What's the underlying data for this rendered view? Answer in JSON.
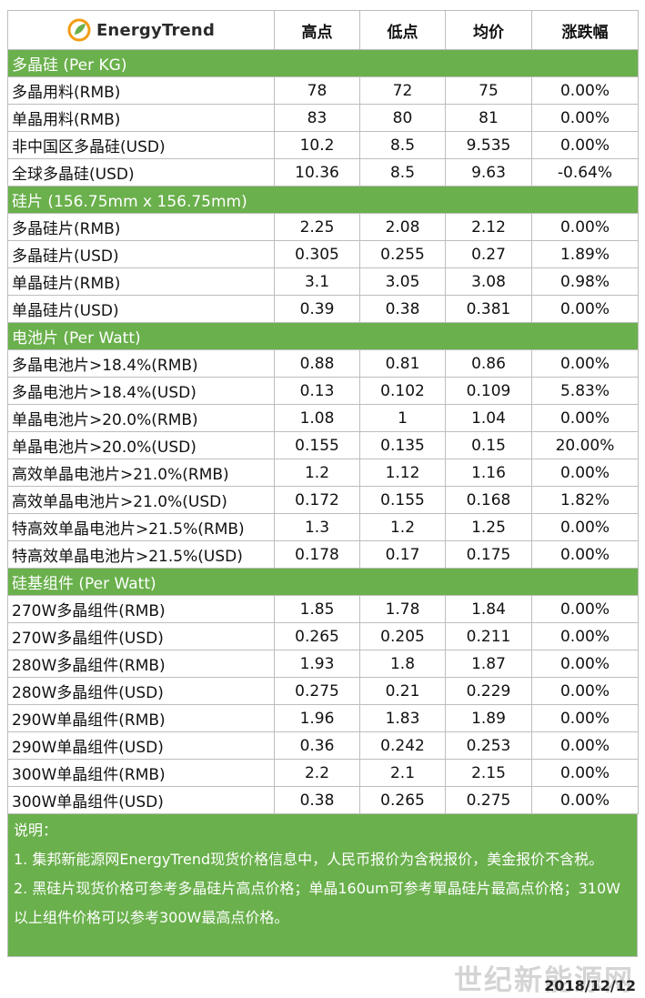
{
  "header": {
    "brand": "EnergyTrend",
    "cols": [
      "高点",
      "低点",
      "均价",
      "涨跌幅"
    ]
  },
  "sections": [
    {
      "title": "多晶硅 (Per KG)",
      "rows": [
        {
          "name": "多晶用料(RMB)",
          "high": "78",
          "low": "72",
          "avg": "75",
          "chg": "0.00%"
        },
        {
          "name": "单晶用料(RMB)",
          "high": "83",
          "low": "80",
          "avg": "81",
          "chg": "0.00%"
        },
        {
          "name": "非中国区多晶硅(USD)",
          "high": "10.2",
          "low": "8.5",
          "avg": "9.535",
          "chg": "0.00%"
        },
        {
          "name": "全球多晶硅(USD)",
          "high": "10.36",
          "low": "8.5",
          "avg": "9.63",
          "chg": "-0.64%"
        }
      ]
    },
    {
      "title": "硅片 (156.75mm x 156.75mm)",
      "rows": [
        {
          "name": "多晶硅片(RMB)",
          "high": "2.25",
          "low": "2.08",
          "avg": "2.12",
          "chg": "0.00%"
        },
        {
          "name": "多晶硅片(USD)",
          "high": "0.305",
          "low": "0.255",
          "avg": "0.27",
          "chg": "1.89%"
        },
        {
          "name": "单晶硅片(RMB)",
          "high": "3.1",
          "low": "3.05",
          "avg": "3.08",
          "chg": "0.98%"
        },
        {
          "name": "单晶硅片(USD)",
          "high": "0.39",
          "low": "0.38",
          "avg": "0.381",
          "chg": "0.00%"
        }
      ]
    },
    {
      "title": "电池片 (Per Watt)",
      "rows": [
        {
          "name": "多晶电池片>18.4%(RMB)",
          "high": "0.88",
          "low": "0.81",
          "avg": "0.86",
          "chg": "0.00%"
        },
        {
          "name": "多晶电池片>18.4%(USD)",
          "high": "0.13",
          "low": "0.102",
          "avg": "0.109",
          "chg": "5.83%"
        },
        {
          "name": "单晶电池片>20.0%(RMB)",
          "high": "1.08",
          "low": "1",
          "avg": "1.04",
          "chg": "0.00%"
        },
        {
          "name": "单晶电池片>20.0%(USD)",
          "high": "0.155",
          "low": "0.135",
          "avg": "0.15",
          "chg": "20.00%"
        },
        {
          "name": "高效单晶电池片>21.0%(RMB)",
          "high": "1.2",
          "low": "1.12",
          "avg": "1.16",
          "chg": "0.00%"
        },
        {
          "name": "高效单晶电池片>21.0%(USD)",
          "high": "0.172",
          "low": "0.155",
          "avg": "0.168",
          "chg": "1.82%"
        },
        {
          "name": "特高效单晶电池片>21.5%(RMB)",
          "high": "1.3",
          "low": "1.2",
          "avg": "1.25",
          "chg": "0.00%"
        },
        {
          "name": "特高效单晶电池片>21.5%(USD)",
          "high": "0.178",
          "low": "0.17",
          "avg": "0.175",
          "chg": "0.00%"
        }
      ]
    },
    {
      "title": "硅基组件 (Per Watt)",
      "rows": [
        {
          "name": "270W多晶组件(RMB)",
          "high": "1.85",
          "low": "1.78",
          "avg": "1.84",
          "chg": "0.00%"
        },
        {
          "name": "270W多晶组件(USD)",
          "high": "0.265",
          "low": "0.205",
          "avg": "0.211",
          "chg": "0.00%"
        },
        {
          "name": "280W多晶组件(RMB)",
          "high": "1.93",
          "low": "1.8",
          "avg": "1.87",
          "chg": "0.00%"
        },
        {
          "name": "280W多晶组件(USD)",
          "high": "0.275",
          "low": "0.21",
          "avg": "0.229",
          "chg": "0.00%"
        },
        {
          "name": "290W单晶组件(RMB)",
          "high": "1.96",
          "low": "1.83",
          "avg": "1.89",
          "chg": "0.00%"
        },
        {
          "name": "290W单晶组件(USD)",
          "high": "0.36",
          "low": "0.242",
          "avg": "0.253",
          "chg": "0.00%"
        },
        {
          "name": "300W单晶组件(RMB)",
          "high": "2.2",
          "low": "2.1",
          "avg": "2.15",
          "chg": "0.00%"
        },
        {
          "name": "300W单晶组件(USD)",
          "high": "0.38",
          "low": "0.265",
          "avg": "0.275",
          "chg": "0.00%"
        }
      ]
    }
  ],
  "notes": {
    "title": "说明：",
    "items": [
      "1. 集邦新能源网EnergyTrend现货价格信息中，人民币报价为含税报价，美金报价不含税。",
      "2. 黑硅片现货价格可参考多晶硅片高点价格；单晶160um可参考單晶硅片最高点价格；310W以上组件价格可以参考300W最高点价格。"
    ]
  },
  "footer": {
    "watermark": "世纪新能源网",
    "date": "2018/12/12"
  },
  "colors": {
    "section_green": "#6ab04c",
    "logo_orange": "#f39c12",
    "logo_green": "#6ab04c"
  }
}
